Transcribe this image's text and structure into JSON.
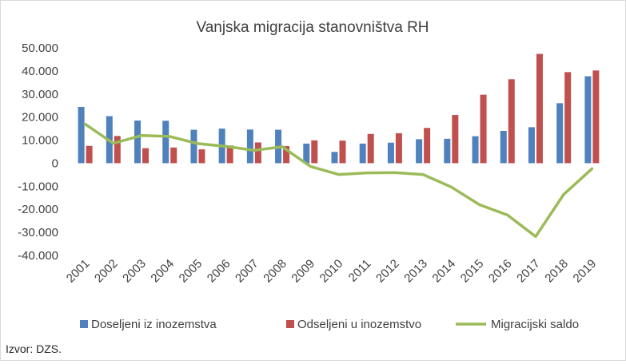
{
  "chart_data": {
    "type": "bar",
    "title": "Vanjska migracija stanovništva RH",
    "categories": [
      "2001",
      "2002",
      "2003",
      "2004",
      "2005",
      "2006",
      "2007",
      "2008",
      "2009",
      "2010",
      "2011",
      "2012",
      "2013",
      "2014",
      "2015",
      "2016",
      "2017",
      "2018",
      "2019"
    ],
    "series": [
      {
        "name": "Doseljeni iz inozemstva",
        "type": "bar",
        "color": "#4f81bd",
        "values": [
          24400,
          20400,
          18500,
          18400,
          14500,
          15000,
          14600,
          14500,
          8500,
          4900,
          8500,
          8900,
          10400,
          10600,
          11700,
          14000,
          15600,
          26000,
          37700
        ]
      },
      {
        "name": "Odseljeni u inozemstvo",
        "type": "bar",
        "color": "#c0504d",
        "values": [
          7500,
          11800,
          6500,
          6800,
          6000,
          7700,
          9000,
          7400,
          9900,
          9800,
          12700,
          13000,
          15300,
          20900,
          29700,
          36400,
          47400,
          39500,
          40200
        ]
      },
      {
        "name": "Migracijski saldo",
        "type": "line",
        "color": "#9bbb59",
        "values": [
          16900,
          8600,
          12000,
          11600,
          8500,
          7300,
          5600,
          7100,
          -1400,
          -4900,
          -4200,
          -4100,
          -4900,
          -10300,
          -18000,
          -22500,
          -31800,
          -13500,
          -2400
        ]
      }
    ],
    "yticks": [
      "50.000",
      "40.000",
      "30.000",
      "20.000",
      "10.000",
      "0",
      "-10.000",
      "-20.000",
      "-30.000",
      "-40.000"
    ],
    "ylim": [
      -40000,
      50000
    ],
    "legend_position": "bottom",
    "source_note": "Izvor: DZS."
  }
}
